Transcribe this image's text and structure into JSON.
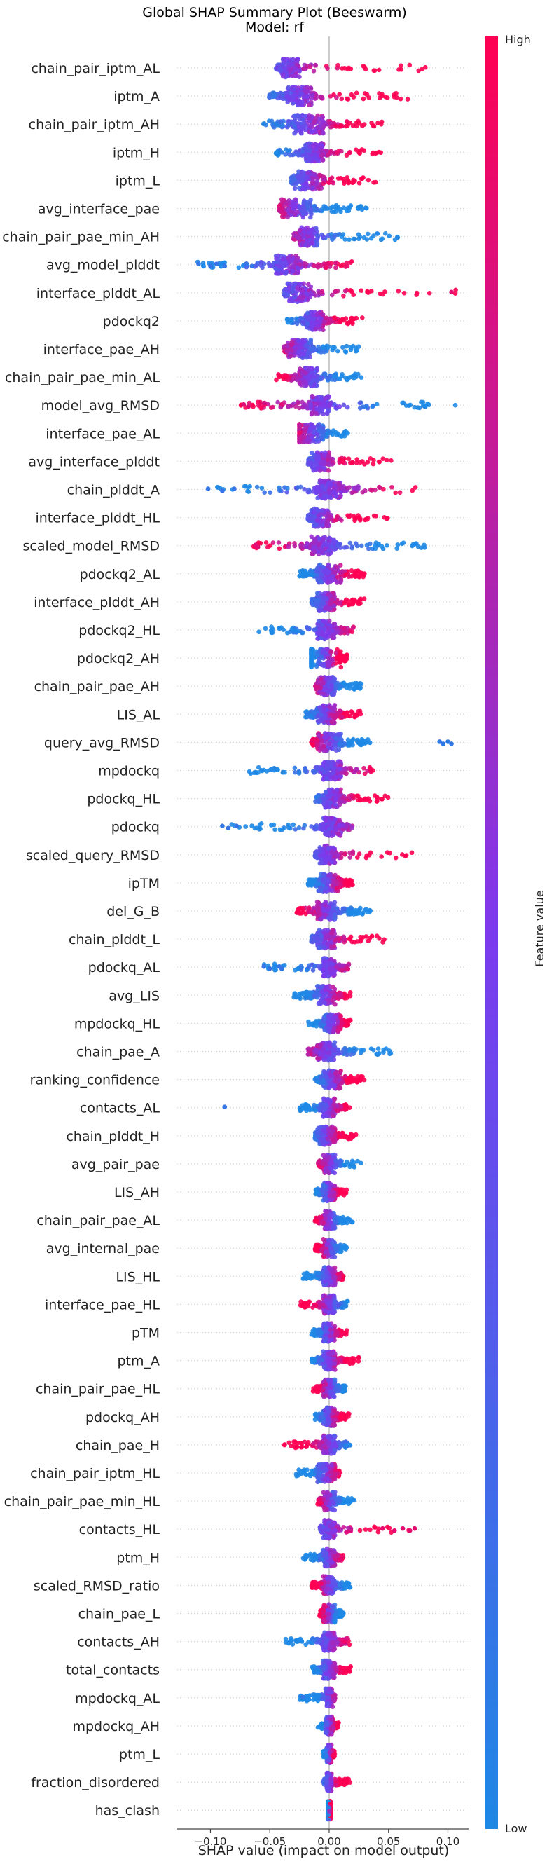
{
  "chart_data": {
    "type": "scatter",
    "subtype": "beeswarm",
    "title": "Global SHAP Summary Plot (Beeswarm)",
    "subtitle": "Model: rf",
    "xlabel": "SHAP value (impact on model output)",
    "xlim": [
      -0.128,
      0.118
    ],
    "xticks": [
      -0.1,
      -0.05,
      0.0,
      0.05,
      0.1
    ],
    "xtick_labels": [
      "−0.10",
      "−0.05",
      "0.00",
      "0.05",
      "0.10"
    ],
    "colorbar": {
      "label": "Feature value",
      "high_label": "High",
      "low_label": "Low",
      "low_color": "#1e88e5",
      "mid_color": "#7c3aed",
      "high_color": "#ff0052"
    },
    "grid": false,
    "features": [
      {
        "name": "chain_pair_iptm_AL",
        "lo": -0.045,
        "hi": 0.082,
        "core": [
          -0.04,
          -0.025
        ],
        "highSide": "right",
        "outliers": []
      },
      {
        "name": "iptm_A",
        "lo": -0.052,
        "hi": 0.068,
        "core": [
          -0.035,
          -0.015
        ],
        "highSide": "right",
        "outliers": []
      },
      {
        "name": "chain_pair_iptm_AH",
        "lo": -0.058,
        "hi": 0.048,
        "core": [
          -0.03,
          -0.005
        ],
        "highSide": "right",
        "outliers": []
      },
      {
        "name": "iptm_H",
        "lo": -0.045,
        "hi": 0.045,
        "core": [
          -0.02,
          -0.005
        ],
        "highSide": "right",
        "outliers": []
      },
      {
        "name": "iptm_L",
        "lo": -0.032,
        "hi": 0.04,
        "core": [
          -0.03,
          -0.005
        ],
        "highSide": "right",
        "outliers": []
      },
      {
        "name": "avg_interface_pae",
        "lo": -0.042,
        "hi": 0.032,
        "core": [
          -0.04,
          -0.015
        ],
        "highSide": "left",
        "outliers": []
      },
      {
        "name": "chain_pair_pae_min_AH",
        "lo": -0.03,
        "hi": 0.06,
        "core": [
          -0.025,
          -0.01
        ],
        "highSide": "left",
        "outliers": []
      },
      {
        "name": "avg_model_plddt",
        "lo": -0.115,
        "hi": 0.032,
        "core": [
          -0.045,
          -0.025
        ],
        "highSide": "right",
        "outliers": [
          -0.11,
          -0.1,
          -0.095,
          -0.088,
          -0.07,
          -0.065
        ]
      },
      {
        "name": "interface_plddt_AL",
        "lo": -0.038,
        "hi": 0.108,
        "core": [
          -0.035,
          -0.015
        ],
        "highSide": "right",
        "outliers": [
          0.103
        ]
      },
      {
        "name": "pdockq2",
        "lo": -0.036,
        "hi": 0.028,
        "core": [
          -0.02,
          -0.005
        ],
        "highSide": "right",
        "outliers": []
      },
      {
        "name": "interface_pae_AH",
        "lo": -0.038,
        "hi": 0.03,
        "core": [
          -0.035,
          -0.015
        ],
        "highSide": "left",
        "outliers": []
      },
      {
        "name": "chain_pair_pae_min_AL",
        "lo": -0.045,
        "hi": 0.028,
        "core": [
          -0.025,
          -0.01
        ],
        "highSide": "left",
        "outliers": []
      },
      {
        "name": "model_avg_RMSD",
        "lo": -0.075,
        "hi": 0.112,
        "core": [
          -0.015,
          0.0
        ],
        "highSide": "left",
        "outliers": [
          -0.072,
          -0.068,
          -0.04
        ]
      },
      {
        "name": "interface_pae_AL",
        "lo": -0.025,
        "hi": 0.022,
        "core": [
          -0.025,
          -0.005
        ],
        "highSide": "left",
        "outliers": []
      },
      {
        "name": "avg_interface_plddt",
        "lo": -0.018,
        "hi": 0.055,
        "core": [
          -0.015,
          0.0
        ],
        "highSide": "right",
        "outliers": []
      },
      {
        "name": "chain_plddt_A",
        "lo": -0.105,
        "hi": 0.075,
        "core": [
          -0.01,
          0.01
        ],
        "highSide": "right",
        "outliers": [
          -0.102,
          -0.09,
          -0.08
        ]
      },
      {
        "name": "interface_plddt_HL",
        "lo": -0.018,
        "hi": 0.055,
        "core": [
          -0.015,
          0.0
        ],
        "highSide": "right",
        "outliers": []
      },
      {
        "name": "scaled_model_RMSD",
        "lo": -0.065,
        "hi": 0.082,
        "core": [
          -0.015,
          0.005
        ],
        "highSide": "left",
        "outliers": [
          -0.062,
          -0.06
        ]
      },
      {
        "name": "pdockq2_AL",
        "lo": -0.025,
        "hi": 0.03,
        "core": [
          -0.01,
          0.01
        ],
        "highSide": "right",
        "outliers": []
      },
      {
        "name": "interface_plddt_AH",
        "lo": -0.015,
        "hi": 0.035,
        "core": [
          -0.01,
          0.005
        ],
        "highSide": "right",
        "outliers": []
      },
      {
        "name": "pdockq2_HL",
        "lo": -0.06,
        "hi": 0.025,
        "core": [
          -0.01,
          0.005
        ],
        "highSide": "right",
        "outliers": []
      },
      {
        "name": "pdockq2_AH",
        "lo": -0.015,
        "hi": 0.015,
        "core": [
          -0.015,
          0.01
        ],
        "highSide": "right",
        "outliers": []
      },
      {
        "name": "chain_pair_pae_AH",
        "lo": -0.012,
        "hi": 0.03,
        "core": [
          -0.01,
          0.005
        ],
        "highSide": "left",
        "outliers": []
      },
      {
        "name": "LIS_AL",
        "lo": -0.02,
        "hi": 0.03,
        "core": [
          -0.01,
          0.005
        ],
        "highSide": "right",
        "outliers": []
      },
      {
        "name": "query_avg_RMSD",
        "lo": -0.015,
        "hi": 0.035,
        "core": [
          -0.01,
          0.01
        ],
        "highSide": "left",
        "outliers": [
          0.093,
          0.096,
          0.1,
          0.103
        ]
      },
      {
        "name": "mpdockq",
        "lo": -0.068,
        "hi": 0.045,
        "core": [
          -0.005,
          0.01
        ],
        "highSide": "right",
        "outliers": []
      },
      {
        "name": "pdockq_HL",
        "lo": -0.012,
        "hi": 0.055,
        "core": [
          -0.005,
          0.01
        ],
        "highSide": "right",
        "outliers": []
      },
      {
        "name": "pdockq",
        "lo": -0.092,
        "hi": 0.02,
        "core": [
          -0.005,
          0.01
        ],
        "highSide": "right",
        "outliers": [
          -0.09,
          -0.085,
          -0.078
        ]
      },
      {
        "name": "scaled_query_RMSD",
        "lo": -0.012,
        "hi": 0.072,
        "core": [
          -0.008,
          0.005
        ],
        "highSide": "right",
        "outliers": []
      },
      {
        "name": "ipTM",
        "lo": -0.018,
        "hi": 0.02,
        "core": [
          -0.01,
          0.01
        ],
        "highSide": "right",
        "outliers": []
      },
      {
        "name": "del_G_B",
        "lo": -0.028,
        "hi": 0.035,
        "core": [
          -0.01,
          0.005
        ],
        "highSide": "left",
        "outliers": []
      },
      {
        "name": "chain_plddt_L",
        "lo": -0.015,
        "hi": 0.048,
        "core": [
          -0.01,
          0.005
        ],
        "highSide": "right",
        "outliers": []
      },
      {
        "name": "pdockq_AL",
        "lo": -0.058,
        "hi": 0.02,
        "core": [
          -0.005,
          0.005
        ],
        "highSide": "right",
        "outliers": [
          -0.055,
          -0.05,
          -0.042,
          -0.04
        ]
      },
      {
        "name": "avg_LIS",
        "lo": -0.03,
        "hi": 0.018,
        "core": [
          -0.01,
          0.005
        ],
        "highSide": "right",
        "outliers": []
      },
      {
        "name": "mpdockq_HL",
        "lo": -0.018,
        "hi": 0.018,
        "core": [
          -0.005,
          0.01
        ],
        "highSide": "right",
        "outliers": []
      },
      {
        "name": "chain_pae_A",
        "lo": -0.018,
        "hi": 0.06,
        "core": [
          -0.01,
          0.005
        ],
        "highSide": "left",
        "outliers": []
      },
      {
        "name": "ranking_confidence",
        "lo": -0.012,
        "hi": 0.03,
        "core": [
          -0.005,
          0.01
        ],
        "highSide": "right",
        "outliers": []
      },
      {
        "name": "contacts_AL",
        "lo": -0.025,
        "hi": 0.018,
        "core": [
          -0.005,
          0.005
        ],
        "highSide": "right",
        "outliers": [
          -0.088
        ]
      },
      {
        "name": "chain_plddt_H",
        "lo": -0.012,
        "hi": 0.025,
        "core": [
          -0.01,
          0.005
        ],
        "highSide": "right",
        "outliers": []
      },
      {
        "name": "avg_pair_pae",
        "lo": -0.01,
        "hi": 0.028,
        "core": [
          -0.005,
          0.005
        ],
        "highSide": "left",
        "outliers": []
      },
      {
        "name": "LIS_AH",
        "lo": -0.012,
        "hi": 0.015,
        "core": [
          -0.005,
          0.005
        ],
        "highSide": "right",
        "outliers": []
      },
      {
        "name": "chain_pair_pae_AL",
        "lo": -0.012,
        "hi": 0.02,
        "core": [
          -0.005,
          0.005
        ],
        "highSide": "left",
        "outliers": []
      },
      {
        "name": "avg_internal_pae",
        "lo": -0.012,
        "hi": 0.015,
        "core": [
          -0.005,
          0.005
        ],
        "highSide": "left",
        "outliers": []
      },
      {
        "name": "LIS_HL",
        "lo": -0.022,
        "hi": 0.012,
        "core": [
          -0.005,
          0.005
        ],
        "highSide": "right",
        "outliers": []
      },
      {
        "name": "interface_pae_HL",
        "lo": -0.025,
        "hi": 0.018,
        "core": [
          -0.005,
          0.005
        ],
        "highSide": "left",
        "outliers": []
      },
      {
        "name": "pTM",
        "lo": -0.015,
        "hi": 0.018,
        "core": [
          -0.005,
          0.005
        ],
        "highSide": "right",
        "outliers": []
      },
      {
        "name": "ptm_A",
        "lo": -0.015,
        "hi": 0.025,
        "core": [
          -0.005,
          0.005
        ],
        "highSide": "right",
        "outliers": []
      },
      {
        "name": "chain_pair_pae_HL",
        "lo": -0.015,
        "hi": 0.015,
        "core": [
          -0.005,
          0.005
        ],
        "highSide": "left",
        "outliers": []
      },
      {
        "name": "pdockq_AH",
        "lo": -0.012,
        "hi": 0.018,
        "core": [
          -0.005,
          0.005
        ],
        "highSide": "right",
        "outliers": []
      },
      {
        "name": "chain_pae_H",
        "lo": -0.038,
        "hi": 0.018,
        "core": [
          -0.005,
          0.005
        ],
        "highSide": "left",
        "outliers": []
      },
      {
        "name": "chain_pair_iptm_HL",
        "lo": -0.028,
        "hi": 0.01,
        "core": [
          -0.01,
          0.005
        ],
        "highSide": "right",
        "outliers": []
      },
      {
        "name": "chain_pair_pae_min_HL",
        "lo": -0.01,
        "hi": 0.022,
        "core": [
          -0.005,
          0.005
        ],
        "highSide": "left",
        "outliers": []
      },
      {
        "name": "contacts_HL",
        "lo": -0.008,
        "hi": 0.072,
        "core": [
          -0.005,
          0.005
        ],
        "highSide": "right",
        "outliers": [
          0.045,
          0.055,
          0.062,
          0.068,
          0.072
        ]
      },
      {
        "name": "ptm_H",
        "lo": -0.022,
        "hi": 0.012,
        "core": [
          -0.005,
          0.005
        ],
        "highSide": "right",
        "outliers": []
      },
      {
        "name": "scaled_RMSD_ratio",
        "lo": -0.015,
        "hi": 0.018,
        "core": [
          -0.005,
          0.005
        ],
        "highSide": "left",
        "outliers": []
      },
      {
        "name": "chain_pae_L",
        "lo": -0.008,
        "hi": 0.012,
        "core": [
          -0.005,
          0.005
        ],
        "highSide": "left",
        "outliers": []
      },
      {
        "name": "contacts_AH",
        "lo": -0.038,
        "hi": 0.018,
        "core": [
          -0.005,
          0.005
        ],
        "highSide": "right",
        "outliers": []
      },
      {
        "name": "total_contacts",
        "lo": -0.015,
        "hi": 0.022,
        "core": [
          -0.005,
          0.005
        ],
        "highSide": "right",
        "outliers": []
      },
      {
        "name": "mpdockq_AL",
        "lo": -0.025,
        "hi": 0.005,
        "core": [
          -0.003,
          0.003
        ],
        "highSide": "right",
        "outliers": [
          -0.022
        ]
      },
      {
        "name": "mpdockq_AH",
        "lo": -0.01,
        "hi": 0.008,
        "core": [
          -0.003,
          0.003
        ],
        "highSide": "right",
        "outliers": []
      },
      {
        "name": "ptm_L",
        "lo": -0.005,
        "hi": 0.005,
        "core": [
          -0.002,
          0.002
        ],
        "highSide": "right",
        "outliers": []
      },
      {
        "name": "fraction_disordered",
        "lo": -0.005,
        "hi": 0.018,
        "core": [
          -0.002,
          0.002
        ],
        "highSide": "right",
        "outliers": []
      },
      {
        "name": "has_clash",
        "lo": -0.001,
        "hi": 0.001,
        "core": [
          -0.001,
          0.001
        ],
        "highSide": "right",
        "outliers": []
      }
    ]
  }
}
